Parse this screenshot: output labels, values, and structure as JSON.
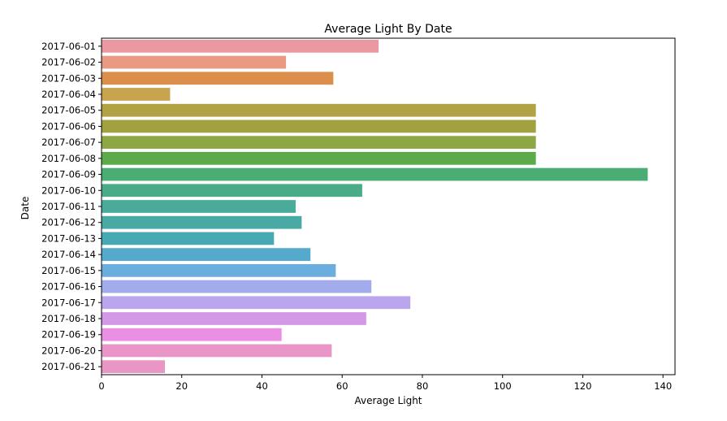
{
  "chart_data": {
    "type": "bar",
    "orientation": "horizontal",
    "title": "Average Light By Date",
    "xlabel": "Average Light",
    "ylabel": "Date",
    "xlim": [
      0,
      143
    ],
    "xticks": [
      0,
      20,
      40,
      60,
      80,
      100,
      120,
      140
    ],
    "grid": false,
    "legend": "none",
    "categories": [
      "2017-06-01",
      "2017-06-02",
      "2017-06-03",
      "2017-06-04",
      "2017-06-05",
      "2017-06-06",
      "2017-06-07",
      "2017-06-08",
      "2017-06-09",
      "2017-06-10",
      "2017-06-11",
      "2017-06-12",
      "2017-06-13",
      "2017-06-14",
      "2017-06-15",
      "2017-06-16",
      "2017-06-17",
      "2017-06-18",
      "2017-06-19",
      "2017-06-20",
      "2017-06-21"
    ],
    "values": [
      69.1,
      46.0,
      57.8,
      17.1,
      108.3,
      108.3,
      108.3,
      108.3,
      136.2,
      65.0,
      48.4,
      49.9,
      43.0,
      52.1,
      58.4,
      67.3,
      77.0,
      66.0,
      44.9,
      57.4,
      15.8
    ],
    "colors": [
      "#ec98a2",
      "#e89a82",
      "#dc8f4c",
      "#c9a44e",
      "#b1a244",
      "#a2a13f",
      "#8ea745",
      "#5bab48",
      "#4aae74",
      "#49ab88",
      "#4aab9a",
      "#49a9a5",
      "#47a9b4",
      "#55a9cd",
      "#6aaee0",
      "#a2aced",
      "#bba5ec",
      "#d498e9",
      "#ea8fe4",
      "#ea95c8",
      "#ea96c4"
    ]
  }
}
